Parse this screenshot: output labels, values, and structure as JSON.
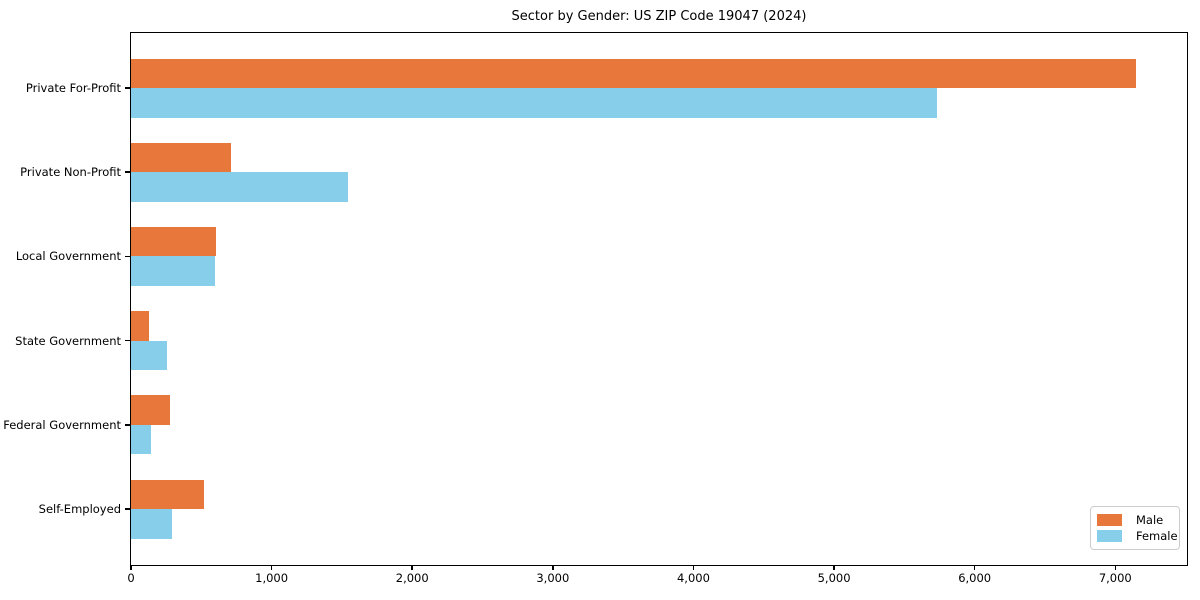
{
  "title": "Sector by Gender: US ZIP Code 19047 (2024)",
  "colors": {
    "male": "#e8773b",
    "female": "#87ceeb",
    "spine": "#000000",
    "text": "#000000",
    "legend_border": "#cccccc",
    "background": "#ffffff"
  },
  "chart_data": {
    "type": "bar",
    "orientation": "horizontal",
    "title": "Sector by Gender: US ZIP Code 19047 (2024)",
    "categories": [
      "Private For-Profit",
      "Private Non-Profit",
      "Local Government",
      "State Government",
      "Federal Government",
      "Self-Employed"
    ],
    "series": [
      {
        "name": "Male",
        "color": "#e8773b",
        "values": [
          7150,
          710,
          605,
          125,
          275,
          520
        ]
      },
      {
        "name": "Female",
        "color": "#87ceeb",
        "values": [
          5730,
          1540,
          600,
          255,
          140,
          295
        ]
      }
    ],
    "xlabel": "",
    "ylabel": "",
    "xlim": [
      0,
      7510
    ],
    "xticks": [
      0,
      1000,
      2000,
      3000,
      4000,
      5000,
      6000,
      7000
    ],
    "xtick_labels": [
      "0",
      "1,000",
      "2,000",
      "3,000",
      "4,000",
      "5,000",
      "6,000",
      "7,000"
    ],
    "grid": false,
    "legend": {
      "position": "lower right",
      "entries": [
        "Male",
        "Female"
      ]
    }
  }
}
